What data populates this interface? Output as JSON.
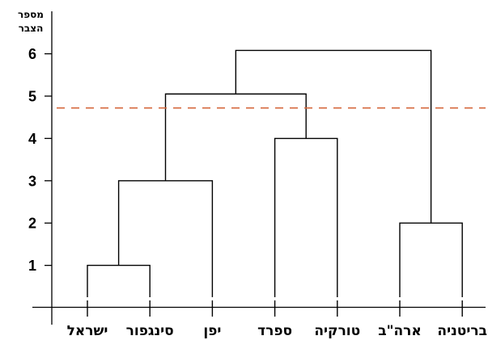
{
  "chart_data": {
    "type": "dendrogram",
    "ylabel": "מספר הצבר",
    "ylim": [
      -1,
      6.4
    ],
    "yticks": [
      1,
      2,
      3,
      4,
      5,
      6
    ],
    "leaves": [
      "ישראל",
      "סינגפור",
      "יפן",
      "ספרד",
      "טורקיה",
      "ארה\"ב",
      "בריטניה"
    ],
    "merges": [
      {
        "left": "ישראל",
        "right": "סינגפור",
        "height": 1
      },
      {
        "left": "ארה\"ב",
        "right": "בריטניה",
        "height": 2
      },
      {
        "left": "ישראל+סינגפור",
        "right": "יפן",
        "height": 3
      },
      {
        "left": "ספרד",
        "right": "טורקיה",
        "height": 4
      },
      {
        "left": "ישראל+סינגפור+יפן",
        "right": "ספרד+טורקיה",
        "height": 5.05
      },
      {
        "left": "ישראל+סינגפור+יפן+ספרד+טורקיה",
        "right": "ארה\"ב+בריטניה",
        "height": 6.08
      }
    ],
    "cut_height": 4.72,
    "colors": {
      "line": "#000000",
      "cut_line": "#d5683e"
    }
  }
}
